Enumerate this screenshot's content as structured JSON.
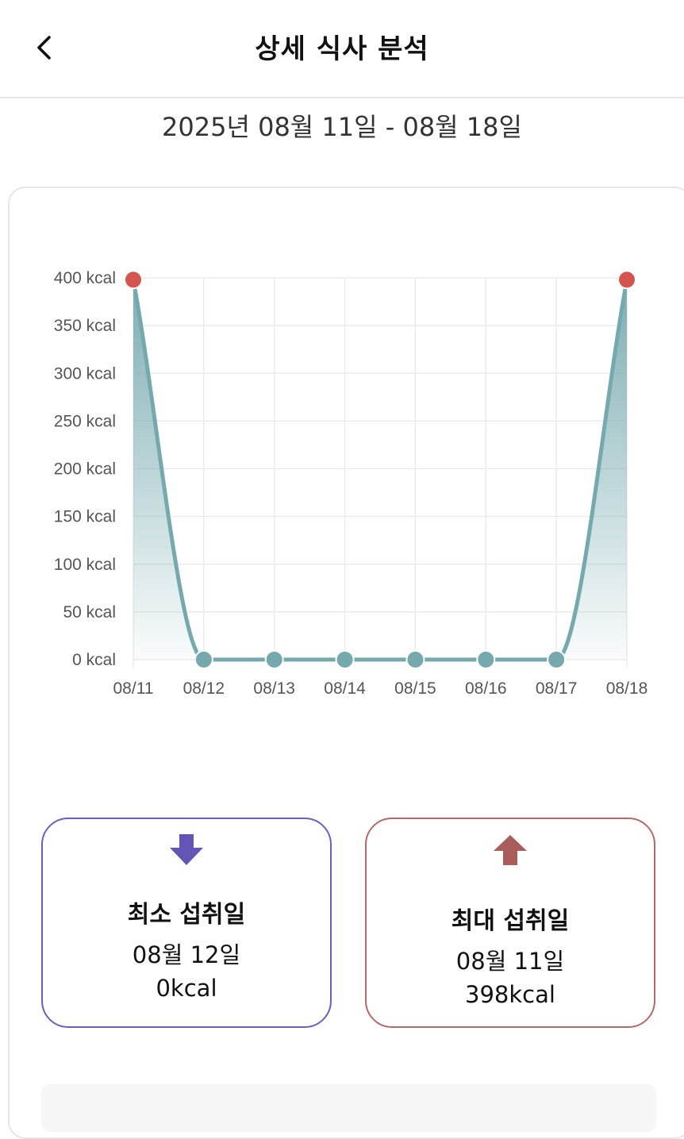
{
  "header": {
    "title": "상세 식사 분석",
    "back_icon": "chevron-left-icon"
  },
  "date_range": "2025년 08월 11일 - 08월 18일",
  "colors": {
    "line": "#76a9ae",
    "point": "#76a9ae",
    "point_highlight": "#d45550",
    "min_accent": "#6a5fc1",
    "min_icon": "#6355b6",
    "max_accent": "#b36a68",
    "max_icon": "#a85d5b",
    "grid": "#ebebeb"
  },
  "chart_data": {
    "type": "area",
    "categories": [
      "08/11",
      "08/12",
      "08/13",
      "08/14",
      "08/15",
      "08/16",
      "08/17",
      "08/18"
    ],
    "series": [
      {
        "values": [
          398,
          0,
          0,
          0,
          0,
          0,
          0,
          398
        ]
      }
    ],
    "highlighted_points": [
      0,
      7
    ],
    "ylim": [
      0,
      400
    ],
    "y_ticks": [
      0,
      50,
      100,
      150,
      200,
      250,
      300,
      350,
      400
    ],
    "y_tick_labels": [
      "0 kcal",
      "50 kcal",
      "100 kcal",
      "150 kcal",
      "200 kcal",
      "250 kcal",
      "300 kcal",
      "350 kcal",
      "400 kcal"
    ],
    "grid": true,
    "smooth": true
  },
  "stats": {
    "min": {
      "icon": "arrow-down-icon",
      "label": "최소 섭취일",
      "date": "08월 12일",
      "value": "0kcal"
    },
    "max": {
      "icon": "arrow-up-icon",
      "label": "최대 섭취일",
      "date": "08월 11일",
      "value": "398kcal"
    }
  }
}
